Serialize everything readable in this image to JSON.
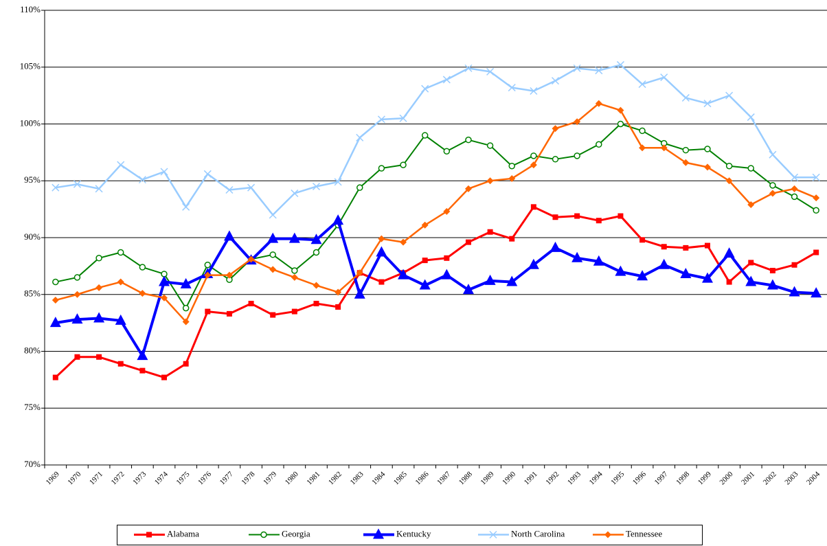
{
  "chart_data": {
    "type": "line",
    "categories": [
      "1969",
      "1970",
      "1971",
      "1972",
      "1973",
      "1974",
      "1975",
      "1976",
      "1977",
      "1978",
      "1979",
      "1980",
      "1981",
      "1982",
      "1983",
      "1984",
      "1985",
      "1986",
      "1987",
      "1988",
      "1989",
      "1990",
      "1991",
      "1992",
      "1993",
      "1994",
      "1995",
      "1996",
      "1997",
      "1998",
      "1999",
      "2000",
      "2001",
      "2002",
      "2003",
      "2004"
    ],
    "ylim": [
      70,
      110
    ],
    "yticks": [
      {
        "value": 70,
        "label": "70%"
      },
      {
        "value": 75,
        "label": "75%"
      },
      {
        "value": 80,
        "label": "80%"
      },
      {
        "value": 85,
        "label": "85%"
      },
      {
        "value": 90,
        "label": "90%"
      },
      {
        "value": 95,
        "label": "95%"
      },
      {
        "value": 100,
        "label": "100%"
      },
      {
        "value": 105,
        "label": "105%"
      },
      {
        "value": 110,
        "label": "110%"
      }
    ],
    "grid": true,
    "legend": "bottom",
    "series": [
      {
        "name": "Alabama",
        "color": "#ff0000",
        "marker": "square",
        "width": 3,
        "values": [
          77.7,
          79.5,
          79.5,
          78.9,
          78.3,
          77.7,
          78.9,
          83.5,
          83.3,
          84.2,
          83.2,
          83.5,
          84.2,
          83.9,
          86.9,
          86.1,
          86.9,
          88.0,
          88.2,
          89.6,
          90.5,
          89.9,
          92.7,
          91.8,
          91.9,
          91.5,
          91.9,
          89.8,
          89.2,
          89.1,
          89.3,
          86.1,
          87.8,
          87.1,
          87.6,
          88.7
        ]
      },
      {
        "name": "Georgia",
        "color": "#008000",
        "marker": "circle",
        "width": 2,
        "values": [
          86.1,
          86.5,
          88.2,
          88.7,
          87.4,
          86.8,
          83.8,
          87.6,
          86.3,
          88.1,
          88.5,
          87.1,
          88.7,
          91.1,
          94.4,
          96.1,
          96.4,
          99.0,
          97.6,
          98.6,
          98.1,
          96.3,
          97.2,
          96.9,
          97.2,
          98.2,
          100.0,
          99.4,
          98.3,
          97.7,
          97.8,
          96.3,
          96.1,
          94.6,
          93.6,
          92.4
        ]
      },
      {
        "name": "Kentucky",
        "color": "#0000ff",
        "marker": "triangle",
        "width": 4,
        "values": [
          82.5,
          82.8,
          82.9,
          82.7,
          79.6,
          86.1,
          85.9,
          86.8,
          90.1,
          88.0,
          89.9,
          89.9,
          89.8,
          91.5,
          85.0,
          88.7,
          86.7,
          85.8,
          86.7,
          85.4,
          86.2,
          86.1,
          87.6,
          89.1,
          88.2,
          87.9,
          87.0,
          86.6,
          87.6,
          86.8,
          86.4,
          88.6,
          86.1,
          85.8,
          85.2,
          85.1
        ]
      },
      {
        "name": "North Carolina",
        "color": "#99ccff",
        "marker": "x",
        "width": 2.5,
        "values": [
          94.4,
          94.7,
          94.3,
          96.4,
          95.1,
          95.8,
          92.7,
          95.6,
          94.2,
          94.4,
          92.0,
          93.9,
          94.5,
          94.9,
          98.8,
          100.4,
          100.5,
          103.1,
          103.9,
          104.9,
          104.6,
          103.2,
          102.9,
          103.8,
          104.9,
          104.7,
          105.2,
          103.5,
          104.1,
          102.3,
          101.8,
          102.5,
          100.6,
          97.3,
          95.3,
          95.3
        ]
      },
      {
        "name": "Tennessee",
        "color": "#ff6600",
        "marker": "diamond",
        "width": 2.5,
        "values": [
          84.5,
          85.0,
          85.6,
          86.1,
          85.1,
          84.7,
          82.6,
          86.7,
          86.7,
          88.1,
          87.2,
          86.5,
          85.8,
          85.2,
          86.9,
          89.9,
          89.6,
          91.1,
          92.3,
          94.3,
          95.0,
          95.2,
          96.4,
          99.6,
          100.2,
          101.8,
          101.2,
          97.9,
          97.9,
          96.6,
          96.2,
          95.0,
          92.9,
          93.9,
          94.3,
          93.5
        ]
      }
    ]
  }
}
